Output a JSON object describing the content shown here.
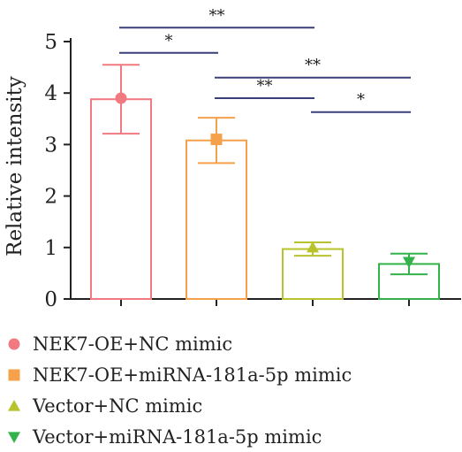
{
  "chart_data": {
    "type": "bar",
    "title": "",
    "xlabel": "",
    "ylabel": "Relative intensity",
    "ylim": [
      0,
      5
    ],
    "yticks": [
      0,
      1,
      2,
      3,
      4,
      5
    ],
    "grid": false,
    "legend_position": "bottom",
    "series": [
      {
        "name": "NEK7-OE+NC mimic",
        "value": 3.88,
        "error": 0.67,
        "point": 3.9,
        "color": "#f07a80",
        "marker": "circle"
      },
      {
        "name": "NEK7-OE+miRNA-181a-5p mimic",
        "value": 3.08,
        "error": 0.44,
        "point": 3.1,
        "color": "#f5a04a",
        "marker": "square"
      },
      {
        "name": "Vector+NC mimic",
        "value": 0.97,
        "error": 0.13,
        "point": 1.0,
        "color": "#b8c22a",
        "marker": "triangle-up"
      },
      {
        "name": "Vector+miRNA-181a-5p mimic",
        "value": 0.68,
        "error": 0.2,
        "point": 0.72,
        "color": "#33b24a",
        "marker": "triangle-down"
      }
    ],
    "significance": [
      {
        "from": 0,
        "to": 2,
        "label": "**",
        "y": 5.27
      },
      {
        "from": 0,
        "to": 1,
        "label": "*",
        "y": 4.78
      },
      {
        "from": 1,
        "to": 3,
        "label": "**",
        "y": 4.3
      },
      {
        "from": 1,
        "to": 2,
        "label": "**",
        "y": 3.9
      },
      {
        "from": 2,
        "to": 3,
        "label": "*",
        "y": 3.63
      }
    ],
    "significance_color": "#3a3f7a"
  }
}
